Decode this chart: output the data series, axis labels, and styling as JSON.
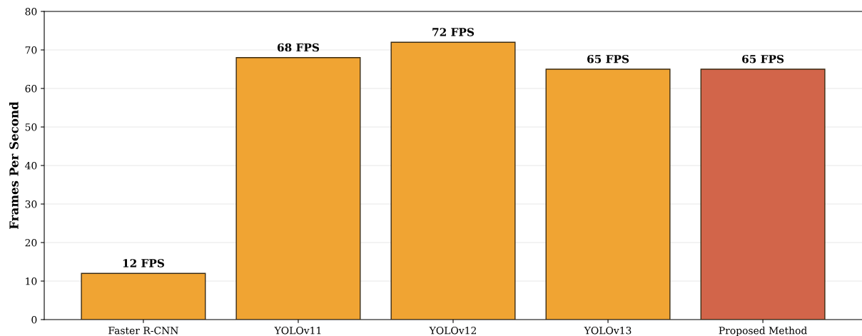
{
  "chart_data": {
    "type": "bar",
    "ylabel": "Frames Per Second",
    "categories": [
      "Faster R-CNN",
      "YOLOv11",
      "YOLOv12",
      "YOLOv13",
      "Proposed Method"
    ],
    "values": [
      12,
      68,
      72,
      65,
      65
    ],
    "colors": [
      "#f0a433",
      "#f0a433",
      "#f0a433",
      "#f0a433",
      "#d2654a"
    ],
    "value_labels": [
      "12 FPS",
      "68 FPS",
      "72 FPS",
      "65 FPS",
      "65 FPS"
    ],
    "ylim": [
      0,
      80
    ],
    "yticks": [
      0,
      10,
      20,
      30,
      40,
      50,
      60,
      70,
      80
    ],
    "grid": "y"
  }
}
